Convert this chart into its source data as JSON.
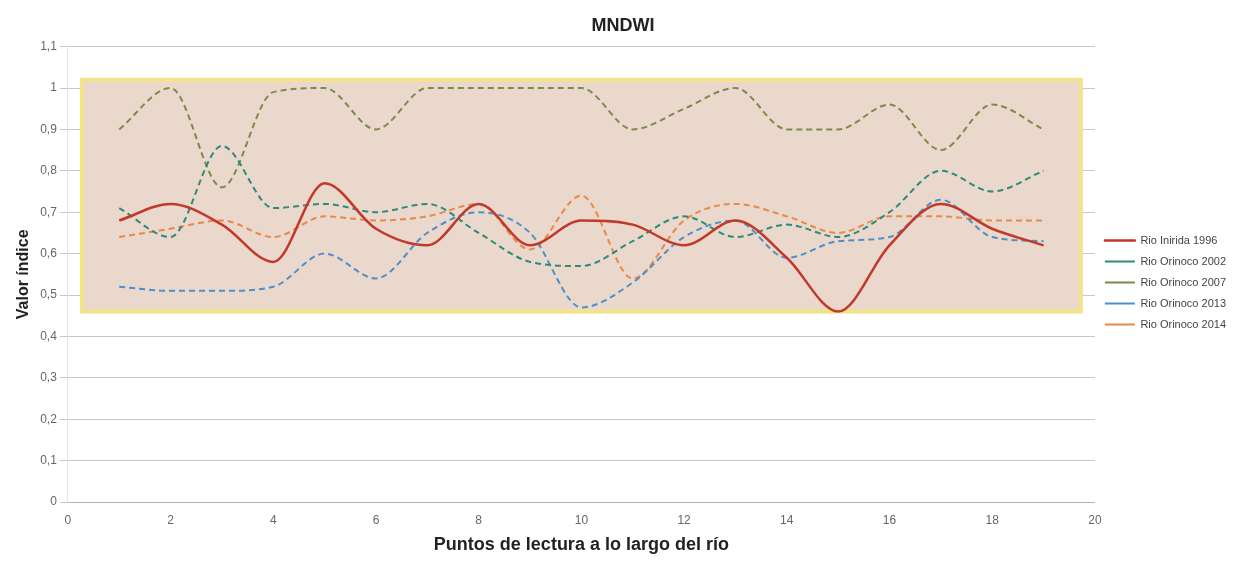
{
  "chart_data": {
    "type": "line",
    "title": "MNDWI",
    "xlabel": "Puntos de lectura a lo largo del río",
    "ylabel": "Valor índice",
    "x": [
      1,
      2,
      3,
      4,
      5,
      6,
      7,
      8,
      9,
      10,
      11,
      12,
      13,
      14,
      15,
      16,
      17,
      18,
      19
    ],
    "xlim": [
      0,
      20
    ],
    "xticks": [
      0,
      2,
      4,
      6,
      8,
      10,
      12,
      14,
      16,
      18,
      20
    ],
    "ylim": [
      0,
      1.1
    ],
    "yticks": [
      0,
      {
        "value": 0.1,
        "label": "0,1"
      },
      {
        "value": 0.2,
        "label": "0,2"
      },
      {
        "value": 0.3,
        "label": "0,3"
      },
      {
        "value": 0.4,
        "label": "0,4"
      },
      {
        "value": 0.5,
        "label": "0,5"
      },
      {
        "value": 0.6,
        "label": "0,6"
      },
      {
        "value": 0.7,
        "label": "0,7"
      },
      {
        "value": 0.8,
        "label": "0,8"
      },
      {
        "value": 0.9,
        "label": "0,9"
      },
      1,
      {
        "value": 1.1,
        "label": "1,1"
      }
    ],
    "grid": "y",
    "legend": "right",
    "marker": "none",
    "bands": [
      {
        "axis": "y",
        "from": 0.46,
        "to": 1.02,
        "color": "#ead8cc"
      }
    ],
    "series": [
      {
        "name": "Rio Inirida 1996",
        "color": "#c0392b",
        "line_style": "solid",
        "values": [
          0.68,
          0.72,
          0.67,
          0.58,
          0.77,
          0.66,
          0.62,
          0.72,
          0.62,
          0.68,
          0.67,
          0.62,
          0.68,
          0.59,
          0.46,
          0.62,
          0.72,
          0.66,
          0.62
        ]
      },
      {
        "name": "Rio Orinoco 2002",
        "color": "#2e8b7a",
        "line_style": "dashed",
        "values": [
          0.71,
          0.64,
          0.86,
          0.71,
          0.72,
          0.7,
          0.72,
          0.65,
          0.58,
          0.57,
          0.63,
          0.69,
          0.64,
          0.67,
          0.64,
          0.7,
          0.8,
          0.75,
          0.8
        ]
      },
      {
        "name": "Rio Orinoco 2007",
        "color": "#7d8a4a",
        "line_style": "dashed",
        "values": [
          0.9,
          1.0,
          0.76,
          0.99,
          1.0,
          0.9,
          1.0,
          1.0,
          1.0,
          1.0,
          0.9,
          0.95,
          1.0,
          0.9,
          0.9,
          0.96,
          0.85,
          0.96,
          0.9
        ]
      },
      {
        "name": "Rio Orinoco 2013",
        "color": "#4f8fc9",
        "line_style": "dashed",
        "values": [
          0.52,
          0.51,
          0.51,
          0.52,
          0.6,
          0.54,
          0.65,
          0.7,
          0.65,
          0.47,
          0.53,
          0.64,
          0.68,
          0.59,
          0.63,
          0.64,
          0.73,
          0.64,
          0.63
        ]
      },
      {
        "name": "Rio Orinoco 2014",
        "color": "#e8894a",
        "line_style": "dashed",
        "values": [
          0.64,
          0.66,
          0.68,
          0.64,
          0.69,
          0.68,
          0.69,
          0.72,
          0.61,
          0.74,
          0.54,
          0.68,
          0.72,
          0.69,
          0.65,
          0.69,
          0.69,
          0.68,
          0.68
        ]
      }
    ]
  }
}
